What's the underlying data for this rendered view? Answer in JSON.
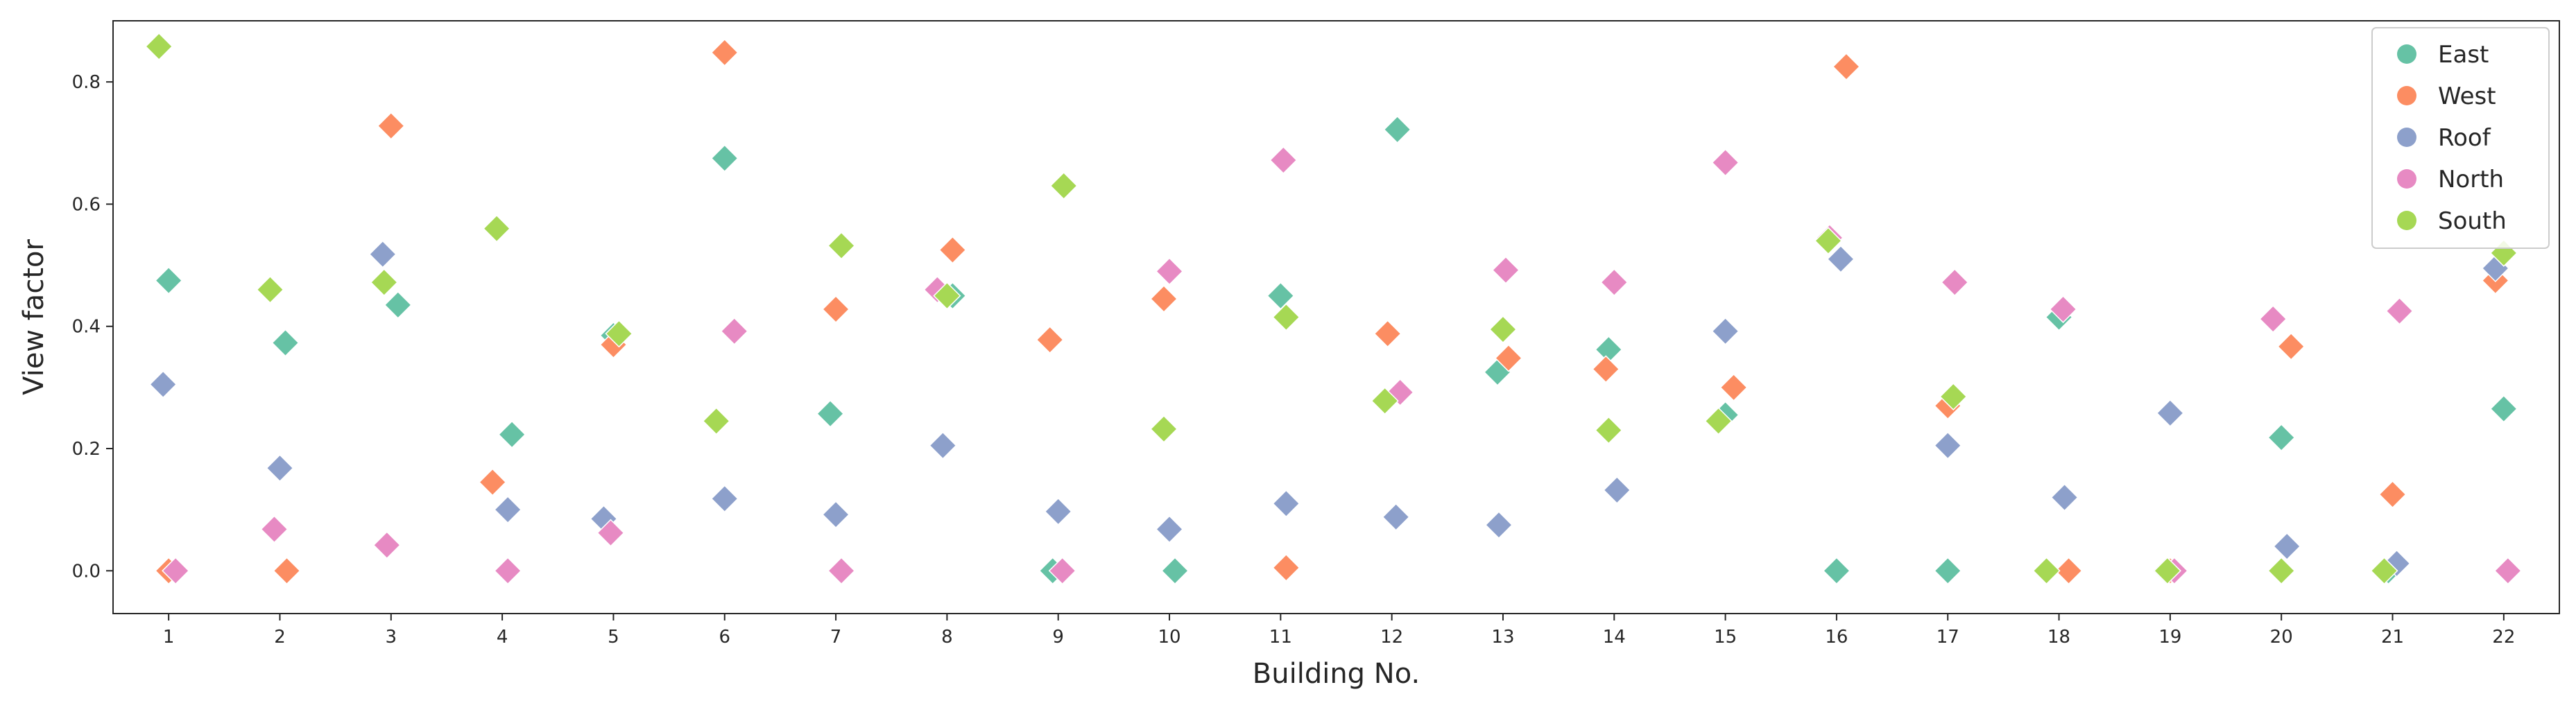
{
  "chart_data": {
    "type": "scatter",
    "title": "",
    "xlabel": "Building No.",
    "ylabel": "View factor",
    "x_categories": [
      "1",
      "2",
      "3",
      "4",
      "5",
      "6",
      "7",
      "8",
      "9",
      "10",
      "11",
      "12",
      "13",
      "14",
      "15",
      "16",
      "17",
      "18",
      "19",
      "20",
      "21",
      "22"
    ],
    "ylim": [
      -0.07,
      0.9
    ],
    "yticks": [
      0.0,
      0.2,
      0.4,
      0.6,
      0.8
    ],
    "ytick_labels": [
      "0.0",
      "0.2",
      "0.4",
      "0.6",
      "0.8"
    ],
    "grid": false,
    "legend_position": "top-right",
    "marker": "diamond",
    "series": [
      {
        "name": "East",
        "color": "#66c2a5",
        "points": [
          {
            "x": 1,
            "y": 0.475
          },
          {
            "x": 2,
            "y": 0.373
          },
          {
            "x": 3,
            "y": 0.435
          },
          {
            "x": 4,
            "y": 0.223
          },
          {
            "x": 5,
            "y": 0.385
          },
          {
            "x": 6,
            "y": 0.675
          },
          {
            "x": 7,
            "y": 0.257
          },
          {
            "x": 8,
            "y": 0.45
          },
          {
            "x": 9,
            "y": 0.0
          },
          {
            "x": 10,
            "y": 0.0
          },
          {
            "x": 11,
            "y": 0.45
          },
          {
            "x": 12,
            "y": 0.722
          },
          {
            "x": 13,
            "y": 0.325
          },
          {
            "x": 14,
            "y": 0.362
          },
          {
            "x": 15,
            "y": 0.255
          },
          {
            "x": 16,
            "y": 0.0
          },
          {
            "x": 17,
            "y": 0.0
          },
          {
            "x": 18,
            "y": 0.415
          },
          {
            "x": 19,
            "y": 0.0
          },
          {
            "x": 20,
            "y": 0.218
          },
          {
            "x": 21,
            "y": 0.0
          },
          {
            "x": 22,
            "y": 0.265
          }
        ]
      },
      {
        "name": "West",
        "color": "#fc8d62",
        "points": [
          {
            "x": 1,
            "y": 0.0
          },
          {
            "x": 2,
            "y": 0.0
          },
          {
            "x": 3,
            "y": 0.728
          },
          {
            "x": 4,
            "y": 0.145
          },
          {
            "x": 5,
            "y": 0.37
          },
          {
            "x": 6,
            "y": 0.848
          },
          {
            "x": 7,
            "y": 0.428
          },
          {
            "x": 8,
            "y": 0.525
          },
          {
            "x": 9,
            "y": 0.378
          },
          {
            "x": 10,
            "y": 0.445
          },
          {
            "x": 11,
            "y": 0.005
          },
          {
            "x": 12,
            "y": 0.388
          },
          {
            "x": 13,
            "y": 0.348
          },
          {
            "x": 14,
            "y": 0.33
          },
          {
            "x": 15,
            "y": 0.3
          },
          {
            "x": 16,
            "y": 0.825
          },
          {
            "x": 17,
            "y": 0.27
          },
          {
            "x": 18,
            "y": 0.0
          },
          {
            "x": 19,
            "y": 0.0
          },
          {
            "x": 20,
            "y": 0.367
          },
          {
            "x": 21,
            "y": 0.125
          },
          {
            "x": 22,
            "y": 0.475
          }
        ]
      },
      {
        "name": "Roof",
        "color": "#8da0cb",
        "points": [
          {
            "x": 1,
            "y": 0.305
          },
          {
            "x": 2,
            "y": 0.168
          },
          {
            "x": 3,
            "y": 0.518
          },
          {
            "x": 4,
            "y": 0.1
          },
          {
            "x": 5,
            "y": 0.085
          },
          {
            "x": 6,
            "y": 0.118
          },
          {
            "x": 7,
            "y": 0.092
          },
          {
            "x": 8,
            "y": 0.205
          },
          {
            "x": 9,
            "y": 0.097
          },
          {
            "x": 10,
            "y": 0.068
          },
          {
            "x": 11,
            "y": 0.11
          },
          {
            "x": 12,
            "y": 0.088
          },
          {
            "x": 13,
            "y": 0.075
          },
          {
            "x": 14,
            "y": 0.132
          },
          {
            "x": 15,
            "y": 0.392
          },
          {
            "x": 16,
            "y": 0.51
          },
          {
            "x": 17,
            "y": 0.205
          },
          {
            "x": 18,
            "y": 0.12
          },
          {
            "x": 19,
            "y": 0.258
          },
          {
            "x": 20,
            "y": 0.04
          },
          {
            "x": 21,
            "y": 0.012
          },
          {
            "x": 22,
            "y": 0.495
          }
        ]
      },
      {
        "name": "North",
        "color": "#e78ac3",
        "points": [
          {
            "x": 1,
            "y": 0.0
          },
          {
            "x": 2,
            "y": 0.068
          },
          {
            "x": 3,
            "y": 0.042
          },
          {
            "x": 4,
            "y": 0.0
          },
          {
            "x": 5,
            "y": 0.062
          },
          {
            "x": 6,
            "y": 0.392
          },
          {
            "x": 7,
            "y": 0.0
          },
          {
            "x": 8,
            "y": 0.46
          },
          {
            "x": 9,
            "y": 0.0
          },
          {
            "x": 10,
            "y": 0.49
          },
          {
            "x": 11,
            "y": 0.672
          },
          {
            "x": 12,
            "y": 0.292
          },
          {
            "x": 13,
            "y": 0.492
          },
          {
            "x": 14,
            "y": 0.472
          },
          {
            "x": 15,
            "y": 0.668
          },
          {
            "x": 16,
            "y": 0.545
          },
          {
            "x": 17,
            "y": 0.472
          },
          {
            "x": 18,
            "y": 0.428
          },
          {
            "x": 19,
            "y": 0.0
          },
          {
            "x": 20,
            "y": 0.412
          },
          {
            "x": 21,
            "y": 0.425
          },
          {
            "x": 22,
            "y": 0.0
          }
        ]
      },
      {
        "name": "South",
        "color": "#a6d854",
        "points": [
          {
            "x": 1,
            "y": 0.858
          },
          {
            "x": 2,
            "y": 0.46
          },
          {
            "x": 3,
            "y": 0.472
          },
          {
            "x": 4,
            "y": 0.56
          },
          {
            "x": 5,
            "y": 0.388
          },
          {
            "x": 6,
            "y": 0.245
          },
          {
            "x": 7,
            "y": 0.532
          },
          {
            "x": 8,
            "y": 0.45
          },
          {
            "x": 9,
            "y": 0.63
          },
          {
            "x": 10,
            "y": 0.232
          },
          {
            "x": 11,
            "y": 0.415
          },
          {
            "x": 12,
            "y": 0.278
          },
          {
            "x": 13,
            "y": 0.395
          },
          {
            "x": 14,
            "y": 0.23
          },
          {
            "x": 15,
            "y": 0.245
          },
          {
            "x": 16,
            "y": 0.54
          },
          {
            "x": 17,
            "y": 0.285
          },
          {
            "x": 18,
            "y": 0.0
          },
          {
            "x": 19,
            "y": 0.0
          },
          {
            "x": 20,
            "y": 0.0
          },
          {
            "x": 21,
            "y": 0.0
          },
          {
            "x": 22,
            "y": 0.52
          }
        ]
      }
    ]
  }
}
